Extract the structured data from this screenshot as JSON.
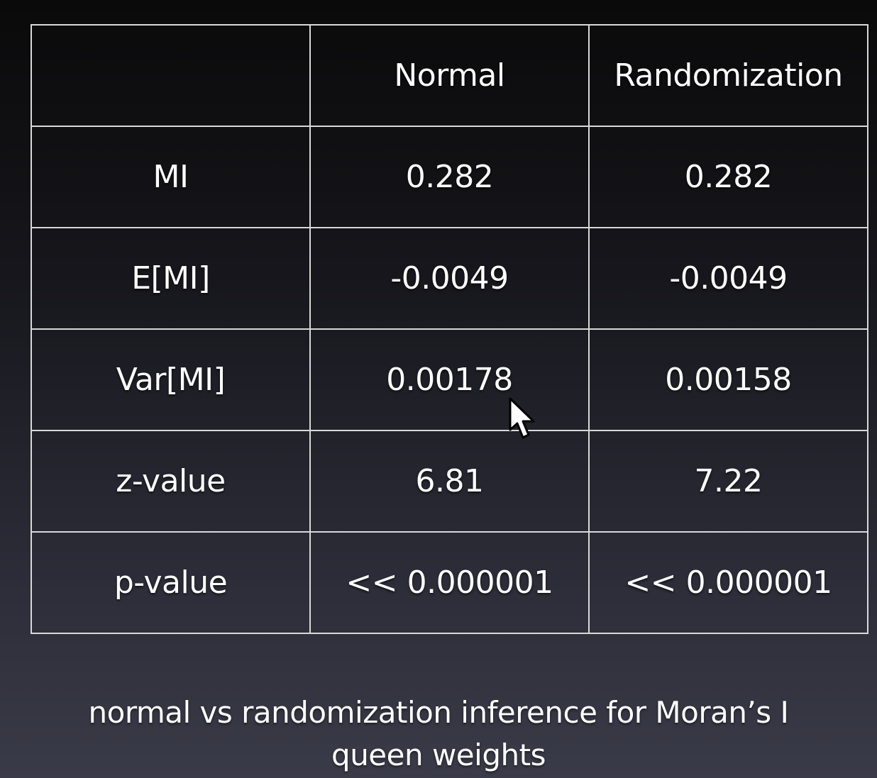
{
  "table": {
    "columns": [
      "",
      "Normal",
      "Randomization"
    ],
    "rows": [
      {
        "label": "MI",
        "normal": "0.282",
        "randomization": "0.282"
      },
      {
        "label": "E[MI]",
        "normal": "-0.0049",
        "randomization": "-0.0049"
      },
      {
        "label": "Var[MI]",
        "normal": "0.00178",
        "randomization": "0.00158"
      },
      {
        "label": "z-value",
        "normal": "6.81",
        "randomization": "7.22"
      },
      {
        "label": "p-value",
        "normal": "<< 0.000001",
        "randomization": "<< 0.000001"
      }
    ]
  },
  "caption": {
    "line1": "normal vs randomization inference for Moran’s I",
    "line2": "queen weights"
  },
  "cursor": {
    "icon": "mouse-pointer-icon"
  },
  "colors": {
    "border": "#d9d9d9",
    "text": "#ffffff",
    "background_top": "#0a0a0a",
    "background_bottom": "#3a3b48"
  }
}
